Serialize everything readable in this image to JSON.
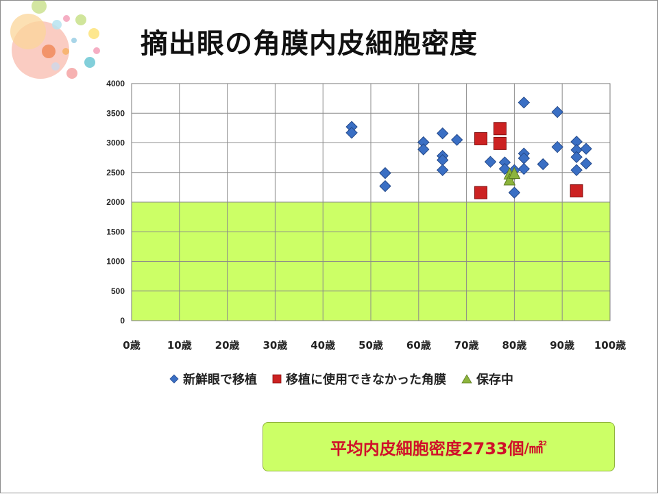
{
  "slide": {
    "title": "摘出眼の角膜内皮細胞密度",
    "summary_text": "平均内皮細胞密度2733個",
    "summary_unit": "/㎟"
  },
  "chart_data": {
    "type": "scatter",
    "title": "",
    "xlim": [
      0,
      100
    ],
    "ylim": [
      0,
      4000
    ],
    "x_ticks": [
      "0歳",
      "10歳",
      "20歳",
      "30歳",
      "40歳",
      "50歳",
      "60歳",
      "70歳",
      "80歳",
      "90歳",
      "100歳"
    ],
    "y_ticks": [
      "0",
      "500",
      "1000",
      "1500",
      "2000",
      "2500",
      "3000",
      "3500",
      "4000"
    ],
    "grid": true,
    "legend_position": "bottom",
    "highlight_band": {
      "y_from": 0,
      "y_to": 2000,
      "color": "#ccff66"
    },
    "series": [
      {
        "name": "新鮮眼で移植",
        "marker": "diamond",
        "color": "#3a6fc4",
        "points": [
          [
            46,
            3270
          ],
          [
            46,
            3170
          ],
          [
            53,
            2490
          ],
          [
            53,
            2270
          ],
          [
            61,
            3010
          ],
          [
            61,
            2890
          ],
          [
            65,
            3160
          ],
          [
            65,
            2780
          ],
          [
            65,
            2710
          ],
          [
            65,
            2540
          ],
          [
            68,
            3050
          ],
          [
            75,
            2680
          ],
          [
            78,
            2670
          ],
          [
            78,
            2560
          ],
          [
            80,
            2540
          ],
          [
            80,
            2160
          ],
          [
            82,
            3680
          ],
          [
            82,
            2820
          ],
          [
            82,
            2740
          ],
          [
            82,
            2560
          ],
          [
            86,
            2640
          ],
          [
            89,
            3520
          ],
          [
            89,
            2930
          ],
          [
            93,
            3020
          ],
          [
            93,
            2880
          ],
          [
            93,
            2760
          ],
          [
            93,
            2540
          ],
          [
            95,
            2900
          ],
          [
            95,
            2650
          ]
        ]
      },
      {
        "name": "移植に使用できなかった角膜",
        "marker": "square",
        "color": "#cc2222",
        "points": [
          [
            73,
            3070
          ],
          [
            73,
            2160
          ],
          [
            77,
            3240
          ],
          [
            77,
            2990
          ],
          [
            93,
            2190
          ]
        ]
      },
      {
        "name": "保存中",
        "marker": "triangle",
        "color": "#8cb43c",
        "points": [
          [
            79,
            2470
          ],
          [
            79,
            2370
          ],
          [
            80,
            2480
          ]
        ]
      }
    ]
  }
}
